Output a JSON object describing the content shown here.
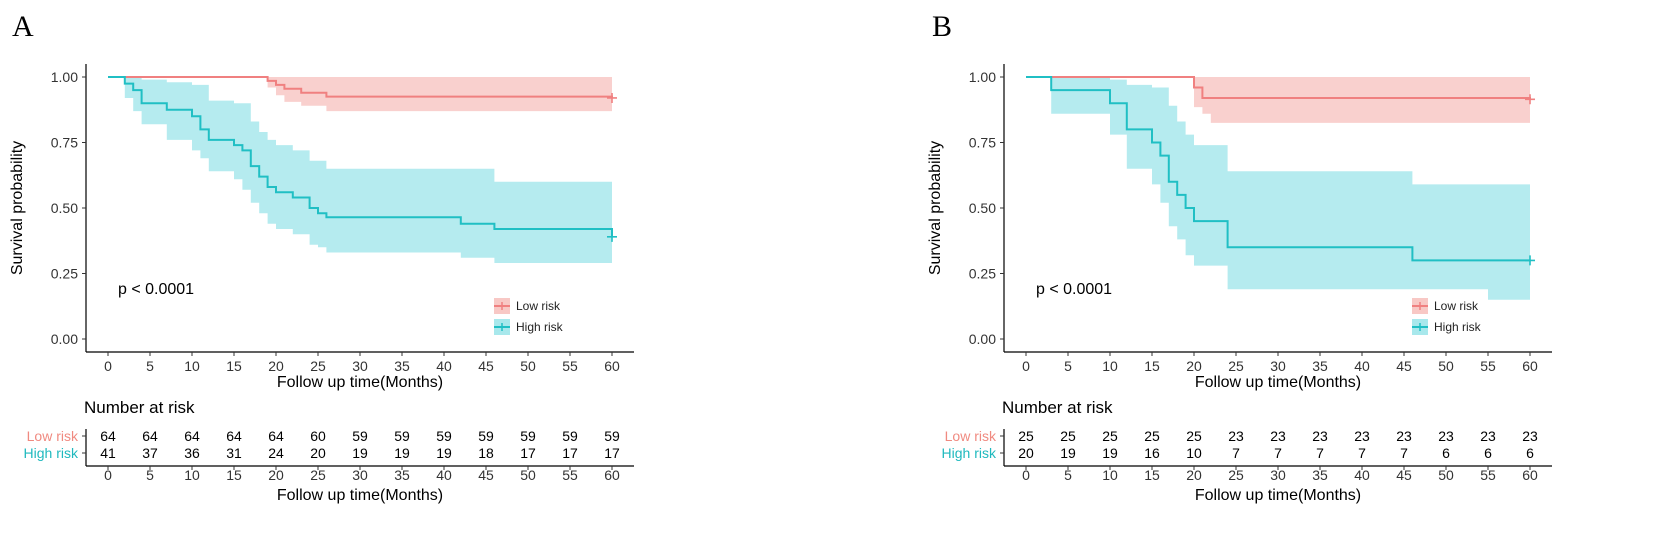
{
  "colors": {
    "low": "#F08080",
    "high": "#20BFC4",
    "low_fill": "#F8C8C5",
    "high_fill": "#A8E8EC",
    "low_label": "#F08A80",
    "high_label": "#1FB9BE"
  },
  "chart_data": [
    {
      "type": "line",
      "panel_label": "A",
      "title": "",
      "xlabel": "Follow up time(Months)",
      "ylabel": "Survival probability",
      "xlim": [
        0,
        60
      ],
      "ylim": [
        0,
        1
      ],
      "x_ticks": [
        "0",
        "5",
        "10",
        "15",
        "20",
        "25",
        "30",
        "35",
        "40",
        "45",
        "50",
        "55",
        "60"
      ],
      "y_ticks": [
        "0.00",
        "0.25",
        "0.50",
        "0.75",
        "1.00"
      ],
      "p_value": "p < 0.0001",
      "legend": [
        "Low risk",
        "High risk"
      ],
      "series": [
        {
          "name": "Low risk",
          "steps": [
            [
              0,
              1.0
            ],
            [
              19,
              0.985
            ],
            [
              20,
              0.97
            ],
            [
              21,
              0.955
            ],
            [
              23,
              0.94
            ],
            [
              26,
              0.925
            ],
            [
              60,
              0.92
            ]
          ],
          "ci_upper": [
            [
              0,
              1.0
            ],
            [
              19,
              1.0
            ],
            [
              26,
              1.0
            ],
            [
              60,
              1.0
            ]
          ],
          "ci_lower": [
            [
              0,
              1.0
            ],
            [
              19,
              0.96
            ],
            [
              20,
              0.93
            ],
            [
              21,
              0.905
            ],
            [
              23,
              0.89
            ],
            [
              26,
              0.87
            ],
            [
              60,
              0.865
            ]
          ],
          "censor_x": [
            60
          ]
        },
        {
          "name": "High risk",
          "steps": [
            [
              0,
              1.0
            ],
            [
              2,
              0.975
            ],
            [
              3,
              0.95
            ],
            [
              4,
              0.9
            ],
            [
              7,
              0.875
            ],
            [
              10,
              0.85
            ],
            [
              11,
              0.8
            ],
            [
              12,
              0.76
            ],
            [
              15,
              0.74
            ],
            [
              16,
              0.72
            ],
            [
              17,
              0.66
            ],
            [
              18,
              0.62
            ],
            [
              19,
              0.58
            ],
            [
              20,
              0.56
            ],
            [
              22,
              0.54
            ],
            [
              24,
              0.5
            ],
            [
              25,
              0.48
            ],
            [
              26,
              0.465
            ],
            [
              42,
              0.44
            ],
            [
              46,
              0.42
            ],
            [
              60,
              0.39
            ]
          ],
          "ci_upper": [
            [
              0,
              1.0
            ],
            [
              4,
              0.99
            ],
            [
              7,
              0.98
            ],
            [
              10,
              0.97
            ],
            [
              12,
              0.91
            ],
            [
              15,
              0.9
            ],
            [
              17,
              0.83
            ],
            [
              18,
              0.79
            ],
            [
              19,
              0.76
            ],
            [
              20,
              0.74
            ],
            [
              22,
              0.72
            ],
            [
              24,
              0.68
            ],
            [
              26,
              0.65
            ],
            [
              46,
              0.6
            ],
            [
              60,
              0.6
            ]
          ],
          "ci_lower": [
            [
              0,
              1.0
            ],
            [
              2,
              0.92
            ],
            [
              3,
              0.87
            ],
            [
              4,
              0.82
            ],
            [
              7,
              0.76
            ],
            [
              10,
              0.72
            ],
            [
              11,
              0.69
            ],
            [
              12,
              0.64
            ],
            [
              15,
              0.61
            ],
            [
              16,
              0.57
            ],
            [
              17,
              0.52
            ],
            [
              18,
              0.48
            ],
            [
              19,
              0.44
            ],
            [
              20,
              0.42
            ],
            [
              22,
              0.4
            ],
            [
              24,
              0.36
            ],
            [
              25,
              0.35
            ],
            [
              26,
              0.33
            ],
            [
              42,
              0.31
            ],
            [
              46,
              0.29
            ],
            [
              60,
              0.29
            ]
          ],
          "censor_x": [
            60
          ]
        }
      ],
      "risk_table": {
        "title": "Number at risk",
        "xlabel": "Follow up time(Months)",
        "rows": [
          {
            "label": "Low risk",
            "values": [
              "64",
              "64",
              "64",
              "64",
              "64",
              "60",
              "59",
              "59",
              "59",
              "59",
              "59",
              "59",
              "59"
            ]
          },
          {
            "label": "High risk",
            "values": [
              "41",
              "37",
              "36",
              "31",
              "24",
              "20",
              "19",
              "19",
              "19",
              "18",
              "17",
              "17",
              "17"
            ]
          }
        ]
      }
    },
    {
      "type": "line",
      "panel_label": "B",
      "title": "",
      "xlabel": "Follow up time(Months)",
      "ylabel": "Survival probability",
      "xlim": [
        0,
        60
      ],
      "ylim": [
        0,
        1
      ],
      "x_ticks": [
        "0",
        "5",
        "10",
        "15",
        "20",
        "25",
        "30",
        "35",
        "40",
        "45",
        "50",
        "55",
        "60"
      ],
      "y_ticks": [
        "0.00",
        "0.25",
        "0.50",
        "0.75",
        "1.00"
      ],
      "p_value": "p < 0.0001",
      "legend": [
        "Low risk",
        "High risk"
      ],
      "series": [
        {
          "name": "Low risk",
          "steps": [
            [
              0,
              1.0
            ],
            [
              20,
              0.96
            ],
            [
              21,
              0.92
            ],
            [
              60,
              0.915
            ]
          ],
          "ci_upper": [
            [
              0,
              1.0
            ],
            [
              60,
              1.0
            ]
          ],
          "ci_lower": [
            [
              0,
              1.0
            ],
            [
              20,
              0.885
            ],
            [
              21,
              0.86
            ],
            [
              22,
              0.825
            ],
            [
              60,
              0.82
            ]
          ],
          "censor_x": [
            60
          ]
        },
        {
          "name": "High risk",
          "steps": [
            [
              0,
              1.0
            ],
            [
              3,
              0.95
            ],
            [
              10,
              0.9
            ],
            [
              12,
              0.8
            ],
            [
              15,
              0.75
            ],
            [
              16,
              0.7
            ],
            [
              17,
              0.6
            ],
            [
              18,
              0.55
            ],
            [
              19,
              0.5
            ],
            [
              20,
              0.45
            ],
            [
              24,
              0.35
            ],
            [
              46,
              0.3
            ],
            [
              60,
              0.3
            ]
          ],
          "ci_upper": [
            [
              0,
              1.0
            ],
            [
              10,
              0.99
            ],
            [
              12,
              0.97
            ],
            [
              15,
              0.96
            ],
            [
              17,
              0.89
            ],
            [
              18,
              0.83
            ],
            [
              19,
              0.78
            ],
            [
              20,
              0.74
            ],
            [
              24,
              0.64
            ],
            [
              46,
              0.59
            ],
            [
              60,
              0.59
            ]
          ],
          "ci_lower": [
            [
              0,
              1.0
            ],
            [
              3,
              0.86
            ],
            [
              10,
              0.78
            ],
            [
              12,
              0.65
            ],
            [
              15,
              0.59
            ],
            [
              16,
              0.52
            ],
            [
              17,
              0.43
            ],
            [
              18,
              0.38
            ],
            [
              19,
              0.32
            ],
            [
              20,
              0.28
            ],
            [
              24,
              0.19
            ],
            [
              46,
              0.19
            ],
            [
              55,
              0.15
            ],
            [
              60,
              0.15
            ]
          ],
          "censor_x": [
            60
          ]
        }
      ],
      "risk_table": {
        "title": "Number at risk",
        "xlabel": "Follow up time(Months)",
        "rows": [
          {
            "label": "Low risk",
            "values": [
              "25",
              "25",
              "25",
              "25",
              "25",
              "23",
              "23",
              "23",
              "23",
              "23",
              "23",
              "23",
              "23"
            ]
          },
          {
            "label": "High risk",
            "values": [
              "20",
              "19",
              "19",
              "16",
              "10",
              "7",
              "7",
              "7",
              "7",
              "7",
              "6",
              "6",
              "6"
            ]
          }
        ]
      }
    }
  ]
}
